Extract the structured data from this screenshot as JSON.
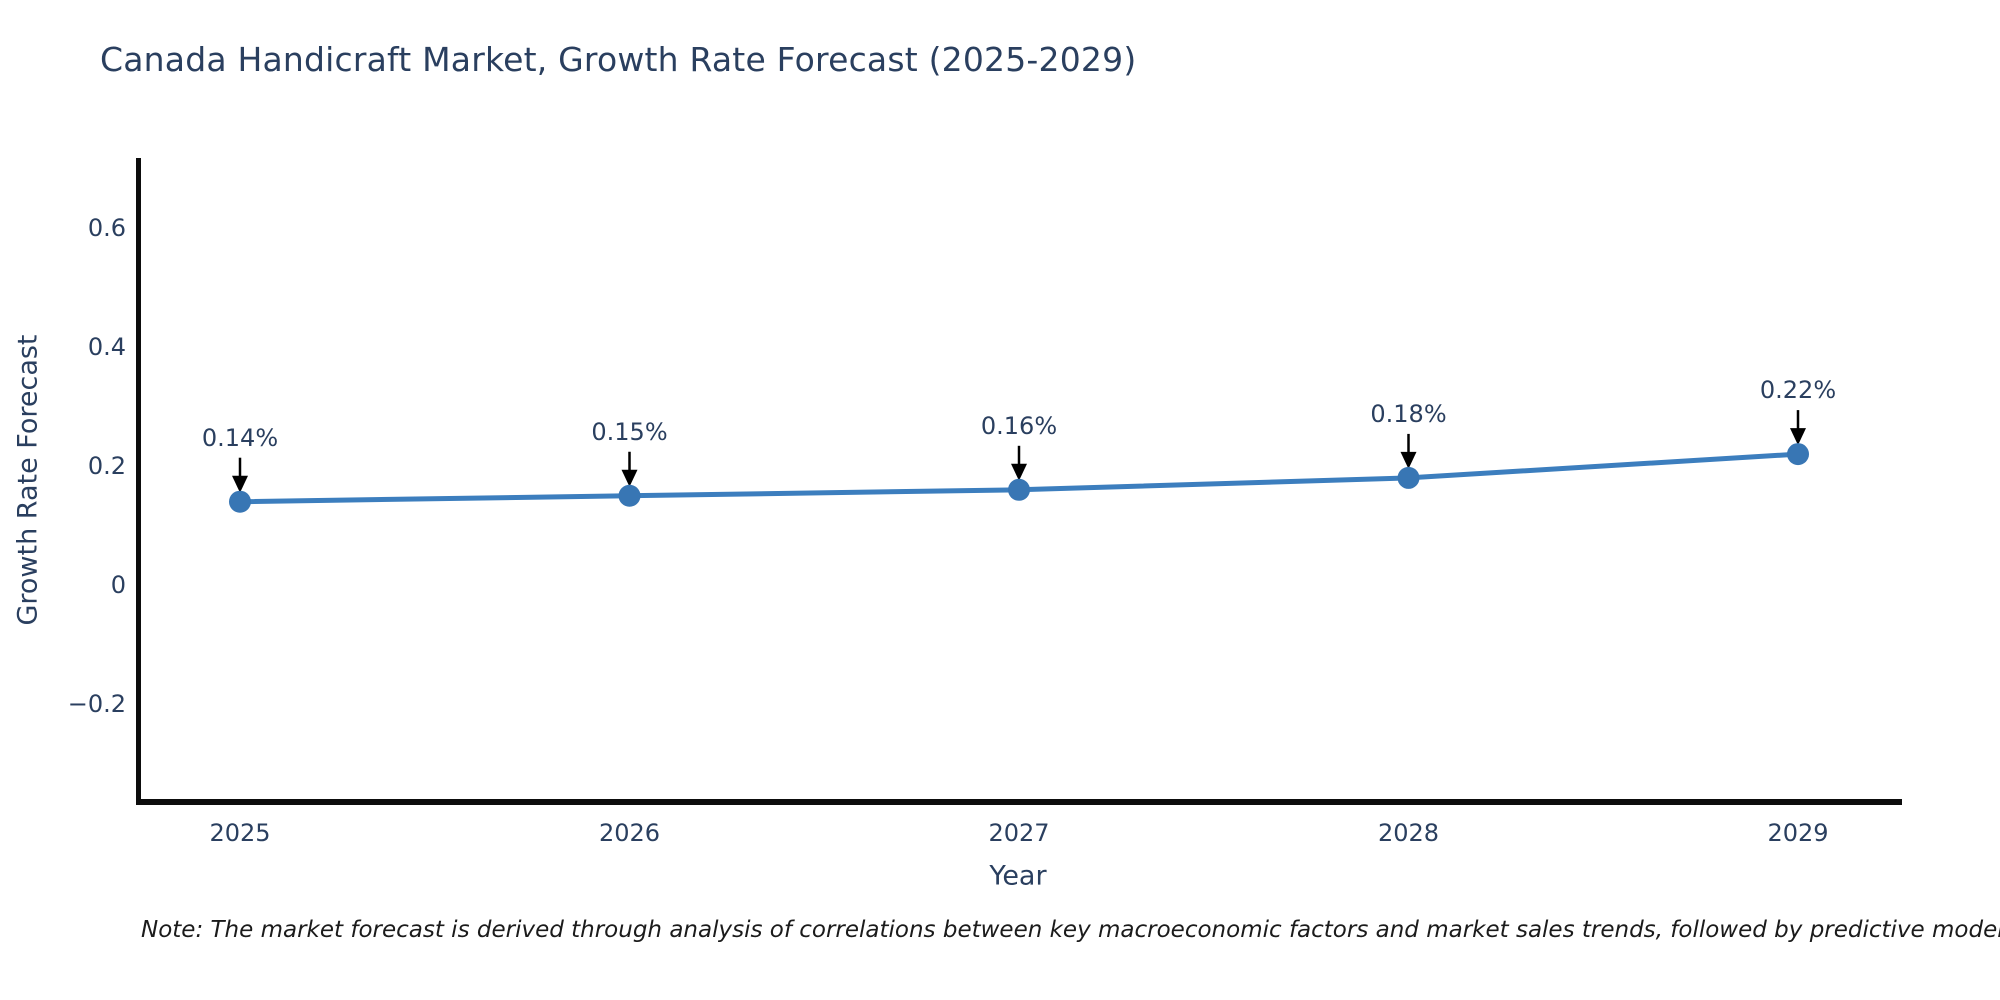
{
  "note": {
    "text": "Note: The market forecast is derived through analysis of correlations between key macroeconomic factors and market sales trends, followed by predictive modeling to project future sales"
  },
  "chart_data": {
    "type": "line",
    "title": "Canada Handicraft Market, Growth Rate Forecast (2025-2029)",
    "xlabel": "Year",
    "ylabel": "Growth Rate Forecast",
    "categories": [
      "2025",
      "2026",
      "2027",
      "2028",
      "2029"
    ],
    "values": [
      0.14,
      0.15,
      0.16,
      0.18,
      0.22
    ],
    "point_labels": [
      "0.14%",
      "0.15%",
      "0.16%",
      "0.18%",
      "0.22%"
    ],
    "y_ticks": [
      {
        "label": "0.6",
        "value": 0.6
      },
      {
        "label": "0.4",
        "value": 0.4
      },
      {
        "label": "0.2",
        "value": 0.2
      },
      {
        "label": "0",
        "value": 0
      },
      {
        "label": "−0.2",
        "value": -0.2
      }
    ],
    "ylim": [
      -0.36,
      0.72
    ],
    "grid": false,
    "legend": null,
    "colors": {
      "line": "#3c7ebe",
      "marker": "#3876b4",
      "annotation_arrow": "#000000",
      "text": "#2a3f5f",
      "axis_line": "#0d0d0d"
    }
  }
}
